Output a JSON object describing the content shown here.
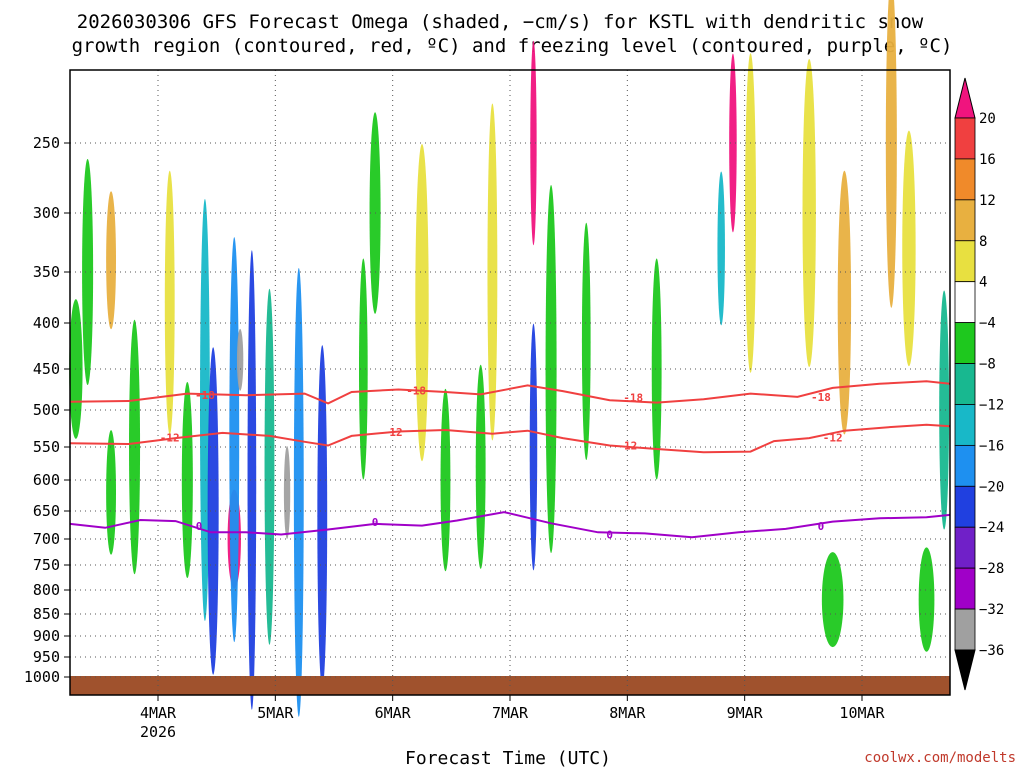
{
  "chart_data": {
    "type": "heatmap",
    "title_lines": [
      "2026030306 GFS Forecast Omega (shaded, −cm/s) for KSTL with dendritic snow",
      "growth region (contoured, red, ºC) and freezing level (contoured, purple, ºC)"
    ],
    "xlabel": "Forecast Time (UTC)",
    "credit": "coolwx.com/modelts",
    "x_ticks": [
      {
        "label": "4MAR",
        "sub": "2026",
        "t": 0.75
      },
      {
        "label": "5MAR",
        "sub": "",
        "t": 1.75
      },
      {
        "label": "6MAR",
        "sub": "",
        "t": 2.75
      },
      {
        "label": "7MAR",
        "sub": "",
        "t": 3.75
      },
      {
        "label": "8MAR",
        "sub": "",
        "t": 4.75
      },
      {
        "label": "9MAR",
        "sub": "",
        "t": 5.75
      },
      {
        "label": "10MAR",
        "sub": "",
        "t": 6.75
      }
    ],
    "x_range": [
      0,
      7.5
    ],
    "y_levels": [
      "250",
      "300",
      "350",
      "400",
      "450",
      "500",
      "550",
      "600",
      "650",
      "700",
      "750",
      "800",
      "850",
      "900",
      "950",
      "1000"
    ],
    "y_range_hpa": [
      200,
      1000
    ],
    "colorbar": {
      "labels": [
        "20",
        "16",
        "12",
        "8",
        "4",
        "−4",
        "−8",
        "−12",
        "−16",
        "−20",
        "−24",
        "−28",
        "−32",
        "−36"
      ],
      "colors": [
        "#f0147e",
        "#f04040",
        "#f08a2a",
        "#e8b040",
        "#e8e040",
        "#ffffff",
        "#1ec81e",
        "#18b890",
        "#18b8c8",
        "#1e90f0",
        "#2040e0",
        "#7020c8",
        "#a000c8",
        "#a0a0a0",
        "#000000"
      ]
    },
    "contours": [
      {
        "kind": "dgz",
        "value": -18,
        "label": "-18",
        "color": "#f04040",
        "points": [
          [
            0,
            490
          ],
          [
            0.5,
            489
          ],
          [
            1.0,
            480
          ],
          [
            1.5,
            482
          ],
          [
            2.0,
            480
          ],
          [
            2.2,
            492
          ],
          [
            2.4,
            478
          ],
          [
            2.8,
            475
          ],
          [
            3.2,
            478
          ],
          [
            3.5,
            481
          ],
          [
            3.9,
            470
          ],
          [
            4.2,
            477
          ],
          [
            4.6,
            488
          ],
          [
            5.0,
            491
          ],
          [
            5.4,
            487
          ],
          [
            5.8,
            480
          ],
          [
            6.2,
            484
          ],
          [
            6.5,
            473
          ],
          [
            6.9,
            468
          ],
          [
            7.3,
            465
          ],
          [
            7.5,
            468
          ]
        ],
        "label_at": [
          [
            1.15,
            482
          ],
          [
            2.95,
            476
          ],
          [
            4.8,
            485
          ],
          [
            6.4,
            484
          ]
        ]
      },
      {
        "kind": "dgz",
        "value": -12,
        "label": "-12",
        "color": "#f04040",
        "points": [
          [
            0,
            545
          ],
          [
            0.5,
            546
          ],
          [
            0.9,
            538
          ],
          [
            1.3,
            531
          ],
          [
            1.7,
            535
          ],
          [
            2.0,
            543
          ],
          [
            2.2,
            548
          ],
          [
            2.4,
            535
          ],
          [
            2.8,
            529
          ],
          [
            3.2,
            527
          ],
          [
            3.6,
            532
          ],
          [
            3.9,
            528
          ],
          [
            4.2,
            538
          ],
          [
            4.6,
            548
          ],
          [
            5.0,
            553
          ],
          [
            5.4,
            558
          ],
          [
            5.8,
            557
          ],
          [
            6.0,
            542
          ],
          [
            6.3,
            538
          ],
          [
            6.6,
            528
          ],
          [
            7.0,
            523
          ],
          [
            7.3,
            520
          ],
          [
            7.5,
            522
          ]
        ],
        "label_at": [
          [
            0.85,
            537
          ],
          [
            2.75,
            530
          ],
          [
            4.75,
            548
          ],
          [
            6.5,
            537
          ]
        ]
      },
      {
        "kind": "freezing",
        "value": 0,
        "label": "0",
        "color": "#a000c8",
        "points": [
          [
            0,
            673
          ],
          [
            0.3,
            680
          ],
          [
            0.6,
            666
          ],
          [
            0.9,
            668
          ],
          [
            1.2,
            688
          ],
          [
            1.5,
            688
          ],
          [
            1.8,
            692
          ],
          [
            2.2,
            683
          ],
          [
            2.6,
            673
          ],
          [
            3.0,
            676
          ],
          [
            3.3,
            667
          ],
          [
            3.7,
            652
          ],
          [
            4.1,
            672
          ],
          [
            4.5,
            688
          ],
          [
            4.9,
            690
          ],
          [
            5.3,
            697
          ],
          [
            5.7,
            688
          ],
          [
            6.1,
            682
          ],
          [
            6.5,
            669
          ],
          [
            6.9,
            663
          ],
          [
            7.3,
            661
          ],
          [
            7.5,
            657
          ]
        ],
        "label_at": [
          [
            1.1,
            677
          ],
          [
            2.6,
            670
          ],
          [
            4.6,
            692
          ],
          [
            6.4,
            677
          ]
        ]
      }
    ],
    "blobs": [
      {
        "t": 0.05,
        "p": 450,
        "w": 0.08,
        "h": 160,
        "v": -8
      },
      {
        "t": 0.15,
        "p": 350,
        "w": 0.06,
        "h": 200,
        "v": -8
      },
      {
        "t": 0.35,
        "p": 340,
        "w": 0.05,
        "h": 120,
        "v": 10
      },
      {
        "t": 0.35,
        "p": 620,
        "w": 0.05,
        "h": 200,
        "v": -8
      },
      {
        "t": 0.55,
        "p": 550,
        "w": 0.06,
        "h": 350,
        "v": -8
      },
      {
        "t": 0.85,
        "p": 380,
        "w": 0.05,
        "h": 250,
        "v": 6
      },
      {
        "t": 1.0,
        "p": 600,
        "w": 0.06,
        "h": 300,
        "v": -8
      },
      {
        "t": 1.15,
        "p": 500,
        "w": 0.05,
        "h": 500,
        "v": -16
      },
      {
        "t": 1.22,
        "p": 650,
        "w": 0.06,
        "h": 520,
        "v": -24
      },
      {
        "t": 1.4,
        "p": 700,
        "w": 0.08,
        "h": 180,
        "v": 22
      },
      {
        "t": 1.4,
        "p": 540,
        "w": 0.05,
        "h": 520,
        "v": -20
      },
      {
        "t": 1.55,
        "p": 600,
        "w": 0.04,
        "h": 640,
        "v": -24
      },
      {
        "t": 1.45,
        "p": 440,
        "w": 0.02,
        "h": 70,
        "v": -36
      },
      {
        "t": 1.7,
        "p": 580,
        "w": 0.05,
        "h": 500,
        "v": -12
      },
      {
        "t": 1.85,
        "p": 620,
        "w": 0.02,
        "h": 150,
        "v": -36
      },
      {
        "t": 1.95,
        "p": 620,
        "w": 0.05,
        "h": 650,
        "v": -20
      },
      {
        "t": 2.15,
        "p": 660,
        "w": 0.05,
        "h": 550,
        "v": -24
      },
      {
        "t": 2.5,
        "p": 450,
        "w": 0.04,
        "h": 250,
        "v": -8
      },
      {
        "t": 2.6,
        "p": 300,
        "w": 0.06,
        "h": 160,
        "v": -8
      },
      {
        "t": 3.0,
        "p": 380,
        "w": 0.08,
        "h": 300,
        "v": 6
      },
      {
        "t": 3.2,
        "p": 600,
        "w": 0.05,
        "h": 280,
        "v": -8
      },
      {
        "t": 3.5,
        "p": 580,
        "w": 0.05,
        "h": 300,
        "v": -8
      },
      {
        "t": 3.6,
        "p": 350,
        "w": 0.05,
        "h": 300,
        "v": 6
      },
      {
        "t": 3.95,
        "p": 250,
        "w": 0.02,
        "h": 150,
        "v": 22
      },
      {
        "t": 3.95,
        "p": 550,
        "w": 0.03,
        "h": 340,
        "v": -24
      },
      {
        "t": 4.1,
        "p": 450,
        "w": 0.06,
        "h": 400,
        "v": -8
      },
      {
        "t": 4.4,
        "p": 420,
        "w": 0.04,
        "h": 250,
        "v": -8
      },
      {
        "t": 5.0,
        "p": 450,
        "w": 0.05,
        "h": 250,
        "v": -8
      },
      {
        "t": 5.55,
        "p": 330,
        "w": 0.03,
        "h": 130,
        "v": -16
      },
      {
        "t": 5.65,
        "p": 250,
        "w": 0.03,
        "h": 130,
        "v": 22
      },
      {
        "t": 5.8,
        "p": 300,
        "w": 0.06,
        "h": 260,
        "v": 6
      },
      {
        "t": 6.3,
        "p": 300,
        "w": 0.08,
        "h": 250,
        "v": 6
      },
      {
        "t": 6.5,
        "p": 820,
        "w": 0.15,
        "h": 200,
        "v": -8
      },
      {
        "t": 6.6,
        "p": 380,
        "w": 0.08,
        "h": 250,
        "v": 10
      },
      {
        "t": 7.0,
        "p": 250,
        "w": 0.06,
        "h": 250,
        "v": 10
      },
      {
        "t": 7.15,
        "p": 330,
        "w": 0.08,
        "h": 200,
        "v": 6
      },
      {
        "t": 7.3,
        "p": 820,
        "w": 0.1,
        "h": 220,
        "v": -8
      },
      {
        "t": 7.45,
        "p": 500,
        "w": 0.05,
        "h": 300,
        "v": -12
      }
    ]
  }
}
